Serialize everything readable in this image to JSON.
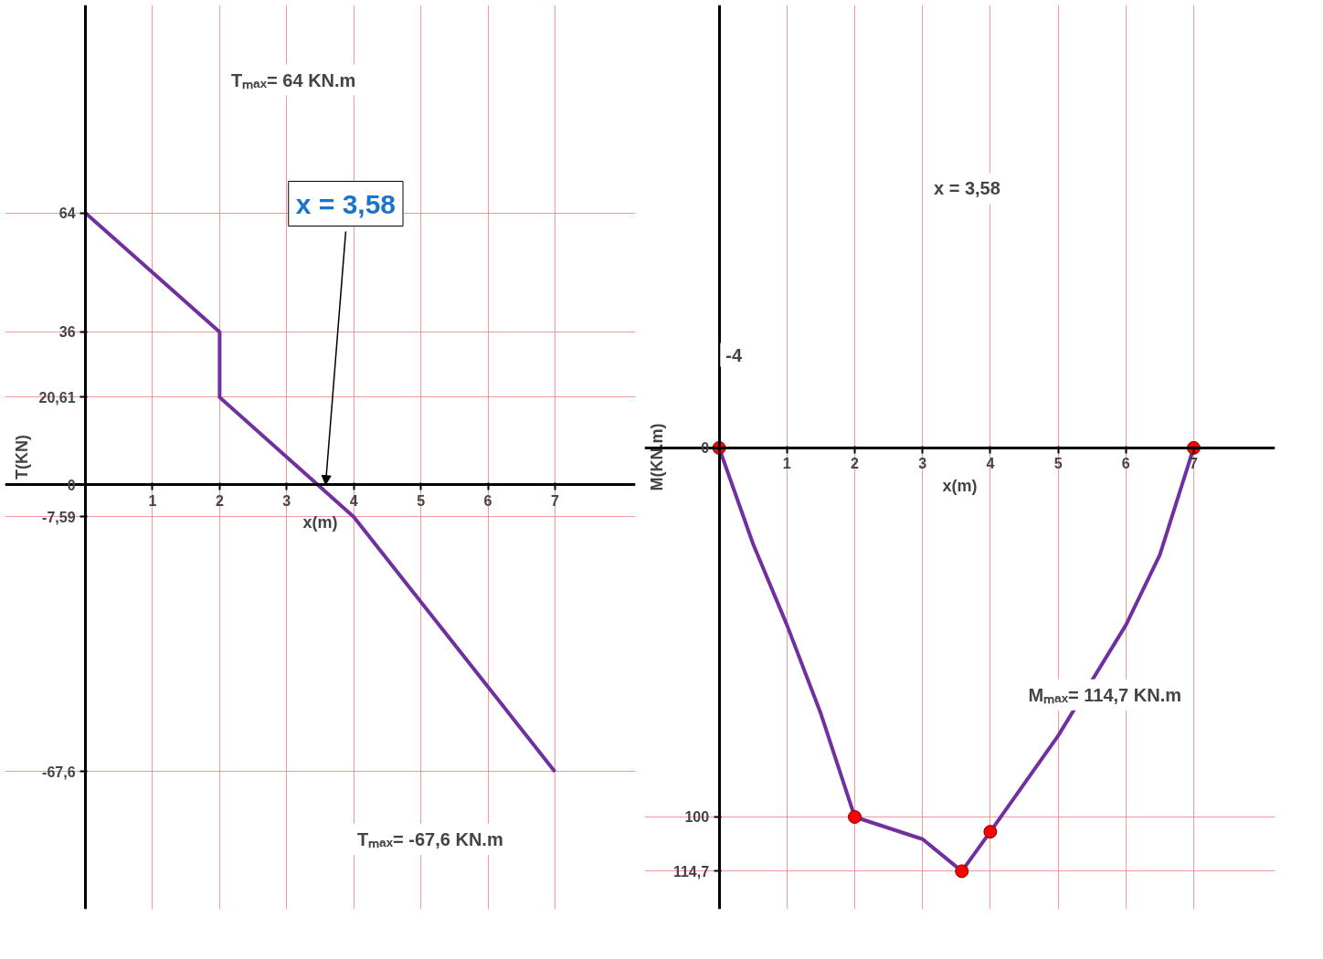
{
  "chart_data": [
    {
      "type": "line",
      "ylabel": "T(KN)",
      "xlabel": "x(m)",
      "xlim": [
        -1.2,
        8.2
      ],
      "ylim": [
        -100,
        113
      ],
      "xticks": [
        1,
        2,
        3,
        4,
        5,
        6,
        7
      ],
      "yticks": [
        {
          "value": 64,
          "label": "64"
        },
        {
          "value": 36,
          "label": "36"
        },
        {
          "value": 20.61,
          "label": "20,61"
        },
        {
          "value": 0,
          "label": "0"
        },
        {
          "value": -7.59,
          "label": "-7,59"
        },
        {
          "value": -67.6,
          "label": "-67,6"
        }
      ],
      "grid": true,
      "marker": "none",
      "line_style": "solid",
      "series": [
        {
          "color": "#7030a0",
          "x": [
            0,
            2,
            2,
            4,
            7
          ],
          "values": [
            64,
            36,
            20.61,
            -7.59,
            -67.6
          ]
        }
      ],
      "annotations": [
        "Tₘₐₓ= 64  KN.m",
        {
          "text": "x = 3,58",
          "x": 3.58,
          "y": 0
        },
        "Tₘₐₓ= -67,6 KN.m"
      ]
    },
    {
      "type": "line",
      "ylabel": "M(KN.m)",
      "xlabel": "x(m)",
      "xlim": [
        -1.1,
        8.2
      ],
      "ylim": [
        125,
        -120
      ],
      "xticks": [
        1,
        2,
        3,
        4,
        5,
        6,
        7
      ],
      "yticks": [
        0,
        100,
        {
          "value": 114.7,
          "label": "114,7"
        }
      ],
      "grid": true,
      "marker": "none",
      "line_style": "solid",
      "series": [
        {
          "color": "#7030a0",
          "x": [
            0,
            0.5,
            1,
            1.5,
            2,
            3,
            3.58,
            4,
            5,
            6,
            6.5,
            7
          ],
          "values": [
            0,
            26,
            48,
            72,
            100,
            106,
            114.7,
            104,
            78,
            48,
            29,
            0
          ]
        },
        {
          "type": "scatter",
          "color": "#ff0000",
          "marker": "circle",
          "x": [
            0,
            2,
            3.58,
            4,
            7
          ],
          "values": [
            0,
            100,
            114.7,
            104,
            0
          ]
        }
      ],
      "annotations": [
        "-4",
        "x = 3,58",
        "Mₘₐₓ= 114,7  KN.m"
      ]
    }
  ]
}
